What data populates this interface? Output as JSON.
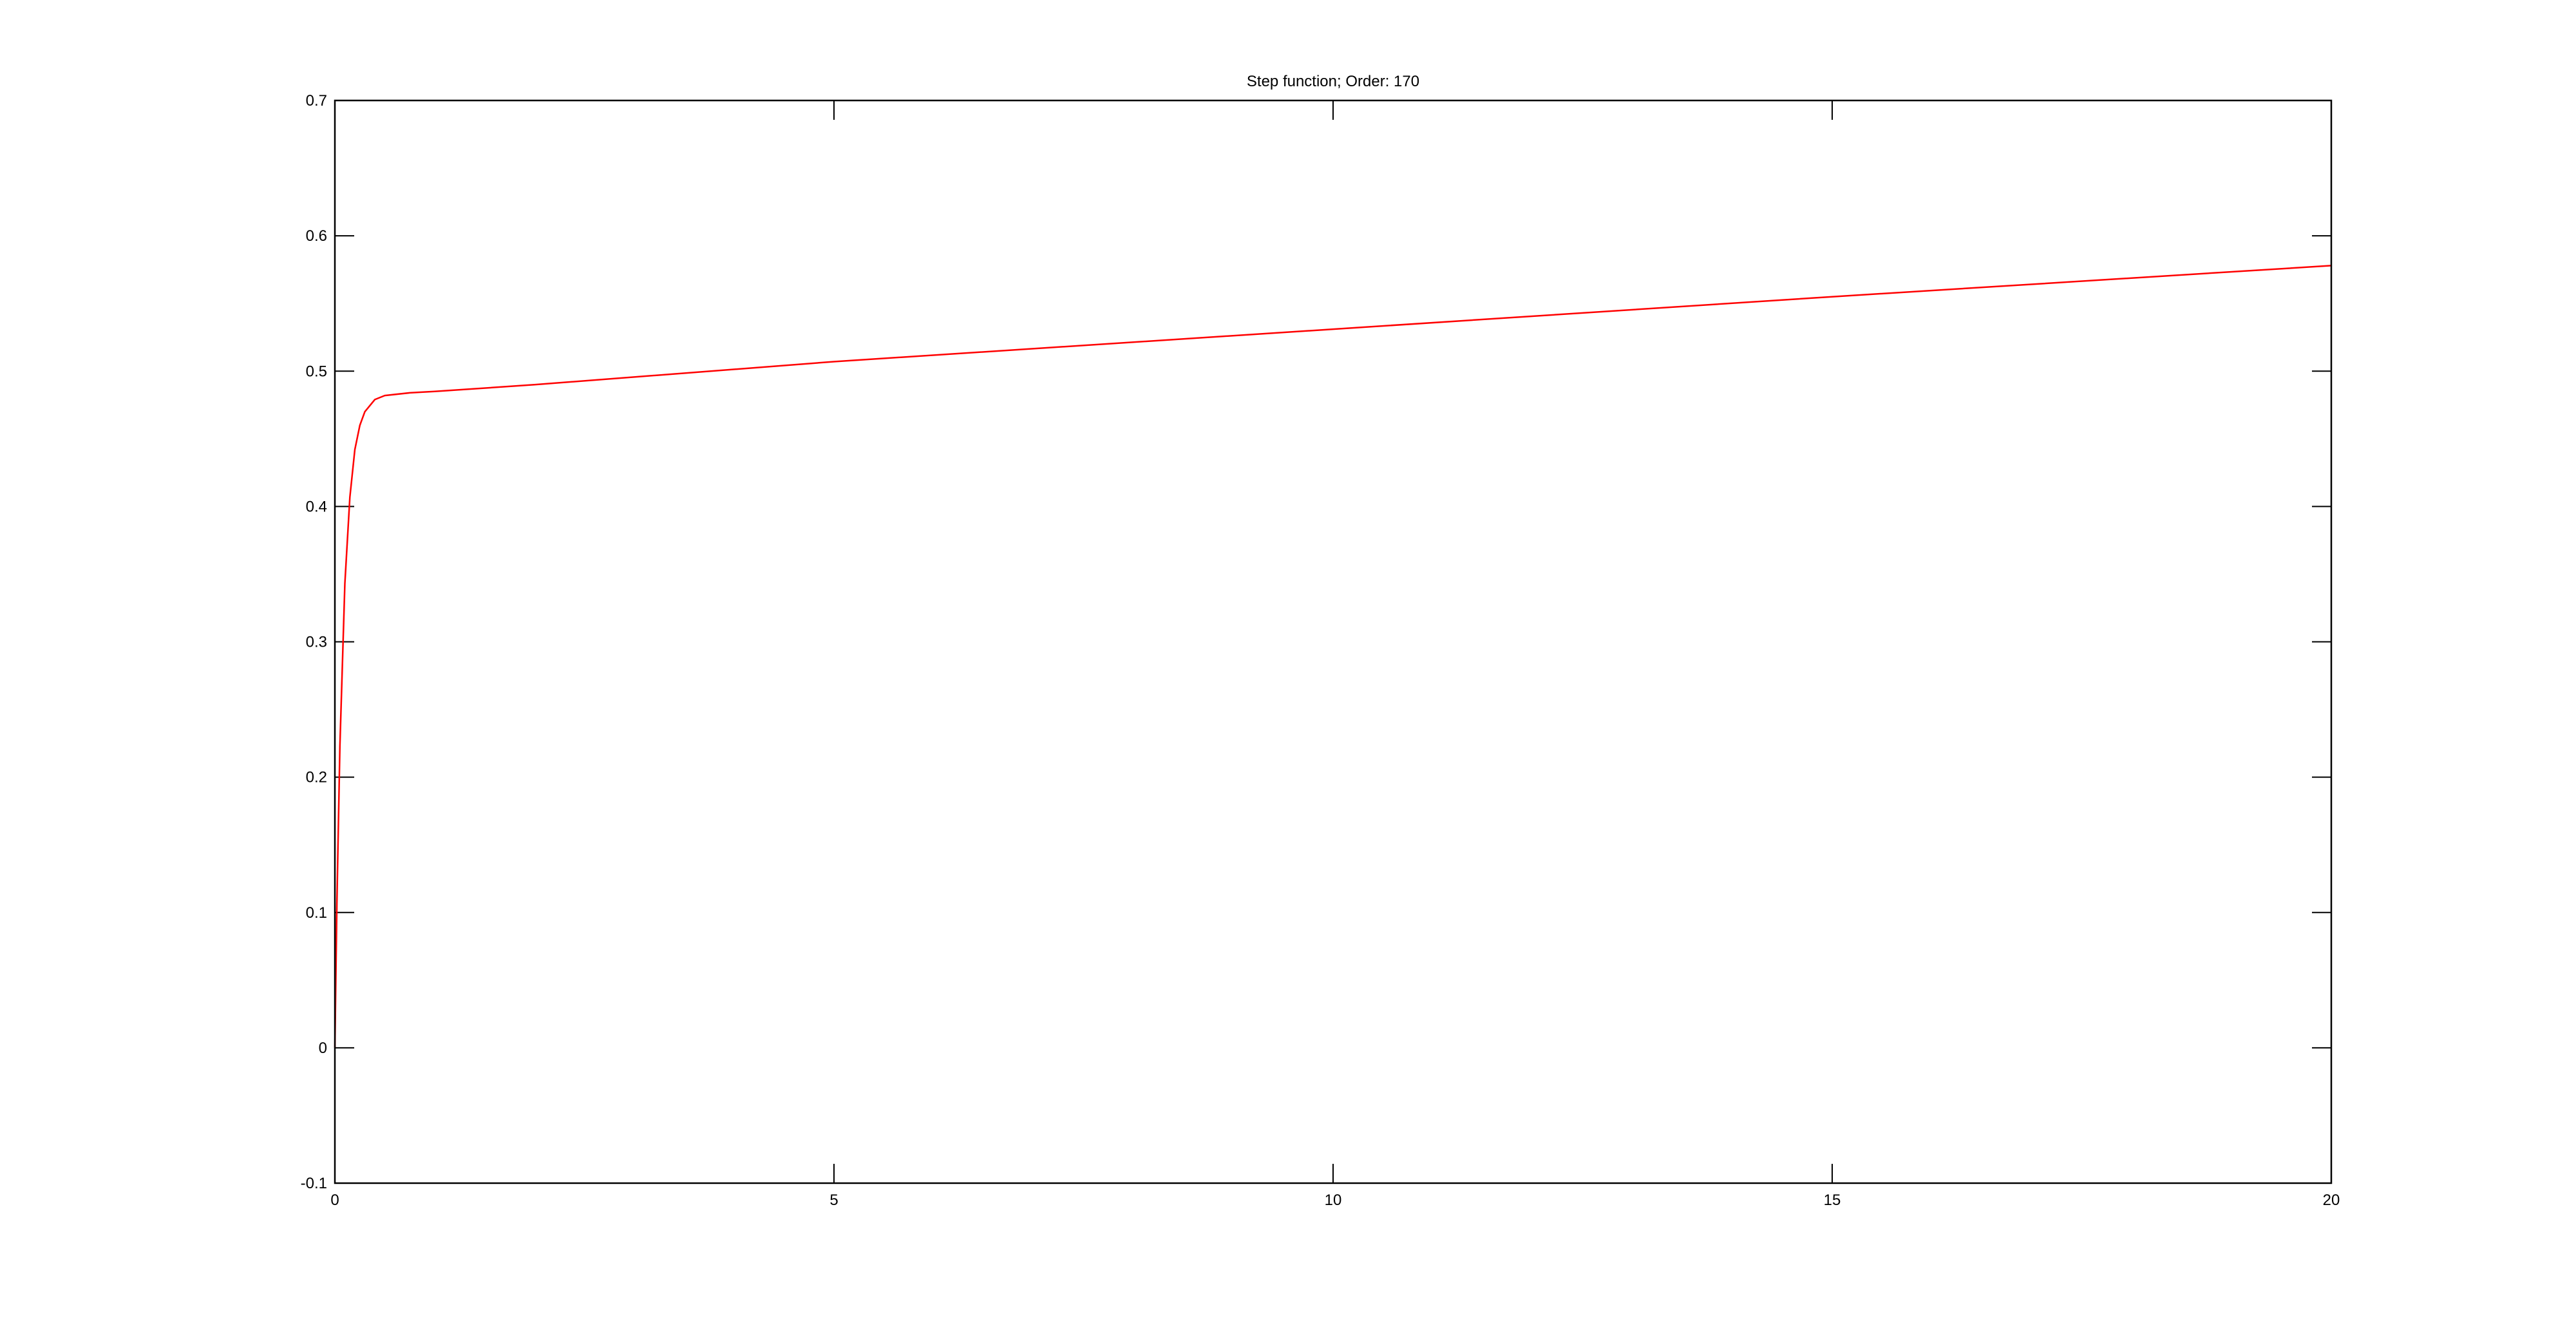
{
  "chart_data": {
    "type": "line",
    "title": "Step function; Order: 170",
    "xlabel": "",
    "ylabel": "",
    "xlim": [
      0,
      20
    ],
    "ylim": [
      -0.1,
      0.7
    ],
    "xticks": [
      "0",
      "5",
      "10",
      "15",
      "20"
    ],
    "yticks": [
      "-0.1",
      "0",
      "0.1",
      "0.2",
      "0.3",
      "0.4",
      "0.5",
      "0.6",
      "0.7"
    ],
    "grid": false,
    "legend": "none",
    "series": [
      {
        "color": "#ff0000",
        "x": [
          0,
          0.02,
          0.05,
          0.1,
          0.15,
          0.2,
          0.25,
          0.3,
          0.4,
          0.5,
          0.75,
          1,
          2,
          5,
          10,
          15,
          20
        ],
        "y": [
          0,
          0.106,
          0.223,
          0.343,
          0.407,
          0.442,
          0.46,
          0.47,
          0.479,
          0.482,
          0.484,
          0.485,
          0.49,
          0.507,
          0.531,
          0.555,
          0.578
        ]
      }
    ]
  }
}
